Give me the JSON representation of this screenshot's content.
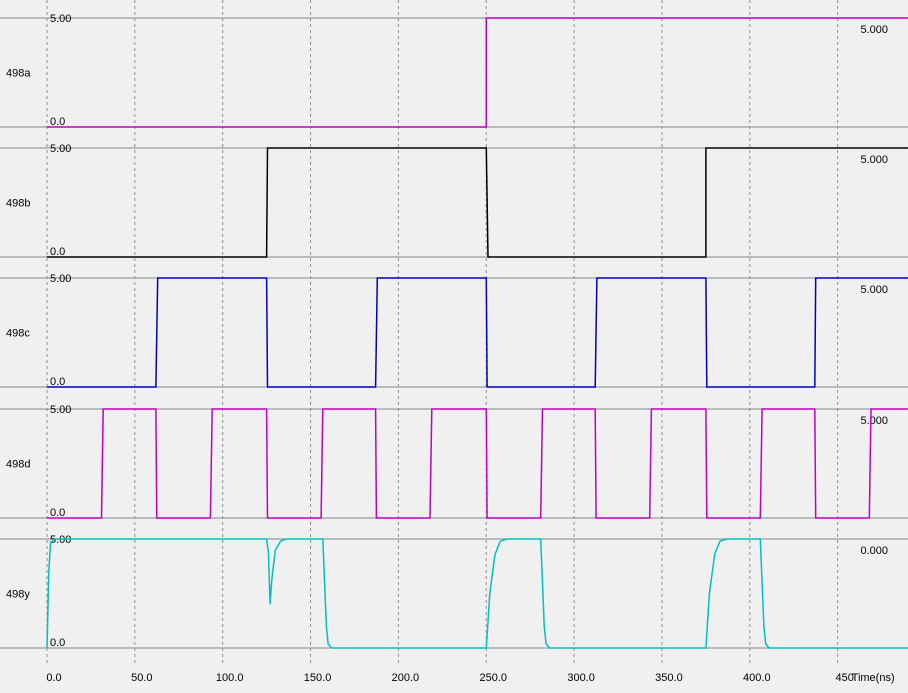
{
  "chart_data": {
    "type": "line",
    "xlabel": "Time(ns)",
    "xlim": [
      0,
      490
    ],
    "x_ticks": [
      "0.0",
      "50.0",
      "100.0",
      "150.0",
      "200.0",
      "250.0",
      "300.0",
      "350.0",
      "400.0",
      "450"
    ],
    "x_tick_values": [
      0,
      50,
      100,
      150,
      200,
      250,
      300,
      350,
      400,
      450
    ],
    "y_tick_labels": [
      "5.00",
      "0.0"
    ],
    "grid": true,
    "colors": {
      "background": "#f0f0f0",
      "grid": "#909090",
      "rail": "#7a8a8a"
    },
    "series": [
      {
        "name": "498a",
        "color": "#c000c0",
        "value_label": "5.000",
        "points": [
          [
            0,
            0
          ],
          [
            250,
            0
          ],
          [
            250,
            5
          ],
          [
            490,
            5
          ]
        ]
      },
      {
        "name": "498b",
        "color": "#000000",
        "value_label": "5.000",
        "points": [
          [
            0,
            0
          ],
          [
            125,
            0
          ],
          [
            125.5,
            5
          ],
          [
            250,
            5
          ],
          [
            251,
            0
          ],
          [
            375,
            0
          ],
          [
            375,
            5
          ],
          [
            490,
            5
          ]
        ]
      },
      {
        "name": "498c",
        "color": "#0000c0",
        "value_label": "5.000",
        "points": [
          [
            0,
            0
          ],
          [
            62,
            0
          ],
          [
            63,
            5
          ],
          [
            125,
            5
          ],
          [
            125.5,
            0
          ],
          [
            187,
            0
          ],
          [
            188,
            5
          ],
          [
            250,
            5
          ],
          [
            250.5,
            0
          ],
          [
            312,
            0
          ],
          [
            313,
            5
          ],
          [
            375,
            5
          ],
          [
            375.5,
            0
          ],
          [
            437,
            0
          ],
          [
            437.5,
            5
          ],
          [
            490,
            5
          ]
        ]
      },
      {
        "name": "498d",
        "color": "#c000c0",
        "value_label": "5.000",
        "points": [
          [
            0,
            0
          ],
          [
            31,
            0
          ],
          [
            32,
            5
          ],
          [
            62,
            5
          ],
          [
            62.5,
            0
          ],
          [
            93,
            0
          ],
          [
            94,
            5
          ],
          [
            125,
            5
          ],
          [
            125.5,
            0
          ],
          [
            156,
            0
          ],
          [
            157,
            5
          ],
          [
            187,
            5
          ],
          [
            187.5,
            0
          ],
          [
            218,
            0
          ],
          [
            219,
            5
          ],
          [
            250,
            5
          ],
          [
            250.5,
            0
          ],
          [
            281,
            0
          ],
          [
            282,
            5
          ],
          [
            312,
            5
          ],
          [
            312.5,
            0
          ],
          [
            343,
            0
          ],
          [
            344,
            5
          ],
          [
            375,
            5
          ],
          [
            375.5,
            0
          ],
          [
            406,
            0
          ],
          [
            407,
            5
          ],
          [
            437,
            5
          ],
          [
            437.5,
            0
          ],
          [
            468,
            0
          ],
          [
            469,
            5
          ],
          [
            490,
            5
          ]
        ]
      },
      {
        "name": "498y",
        "color": "#00c0c0",
        "value_label": "0.000",
        "points": [
          [
            0,
            0
          ],
          [
            1,
            3.5
          ],
          [
            2,
            4.8
          ],
          [
            4,
            5
          ],
          [
            125,
            5
          ],
          [
            126,
            4.4
          ],
          [
            127,
            2.0
          ],
          [
            128,
            3.2
          ],
          [
            130,
            4.5
          ],
          [
            133,
            4.9
          ],
          [
            136,
            5
          ],
          [
            157,
            5
          ],
          [
            158,
            3
          ],
          [
            159,
            1
          ],
          [
            160,
            0.2
          ],
          [
            162,
            0
          ],
          [
            250,
            0
          ],
          [
            252,
            2.5
          ],
          [
            255,
            4.3
          ],
          [
            258,
            4.9
          ],
          [
            262,
            5
          ],
          [
            281,
            5
          ],
          [
            282,
            3
          ],
          [
            283,
            1
          ],
          [
            284,
            0.2
          ],
          [
            286,
            0
          ],
          [
            375,
            0
          ],
          [
            377,
            2.5
          ],
          [
            380,
            4.3
          ],
          [
            383,
            4.9
          ],
          [
            387,
            5
          ],
          [
            406,
            5
          ],
          [
            407,
            3
          ],
          [
            408,
            1
          ],
          [
            409,
            0.2
          ],
          [
            411,
            0
          ],
          [
            490,
            0
          ]
        ]
      }
    ]
  }
}
